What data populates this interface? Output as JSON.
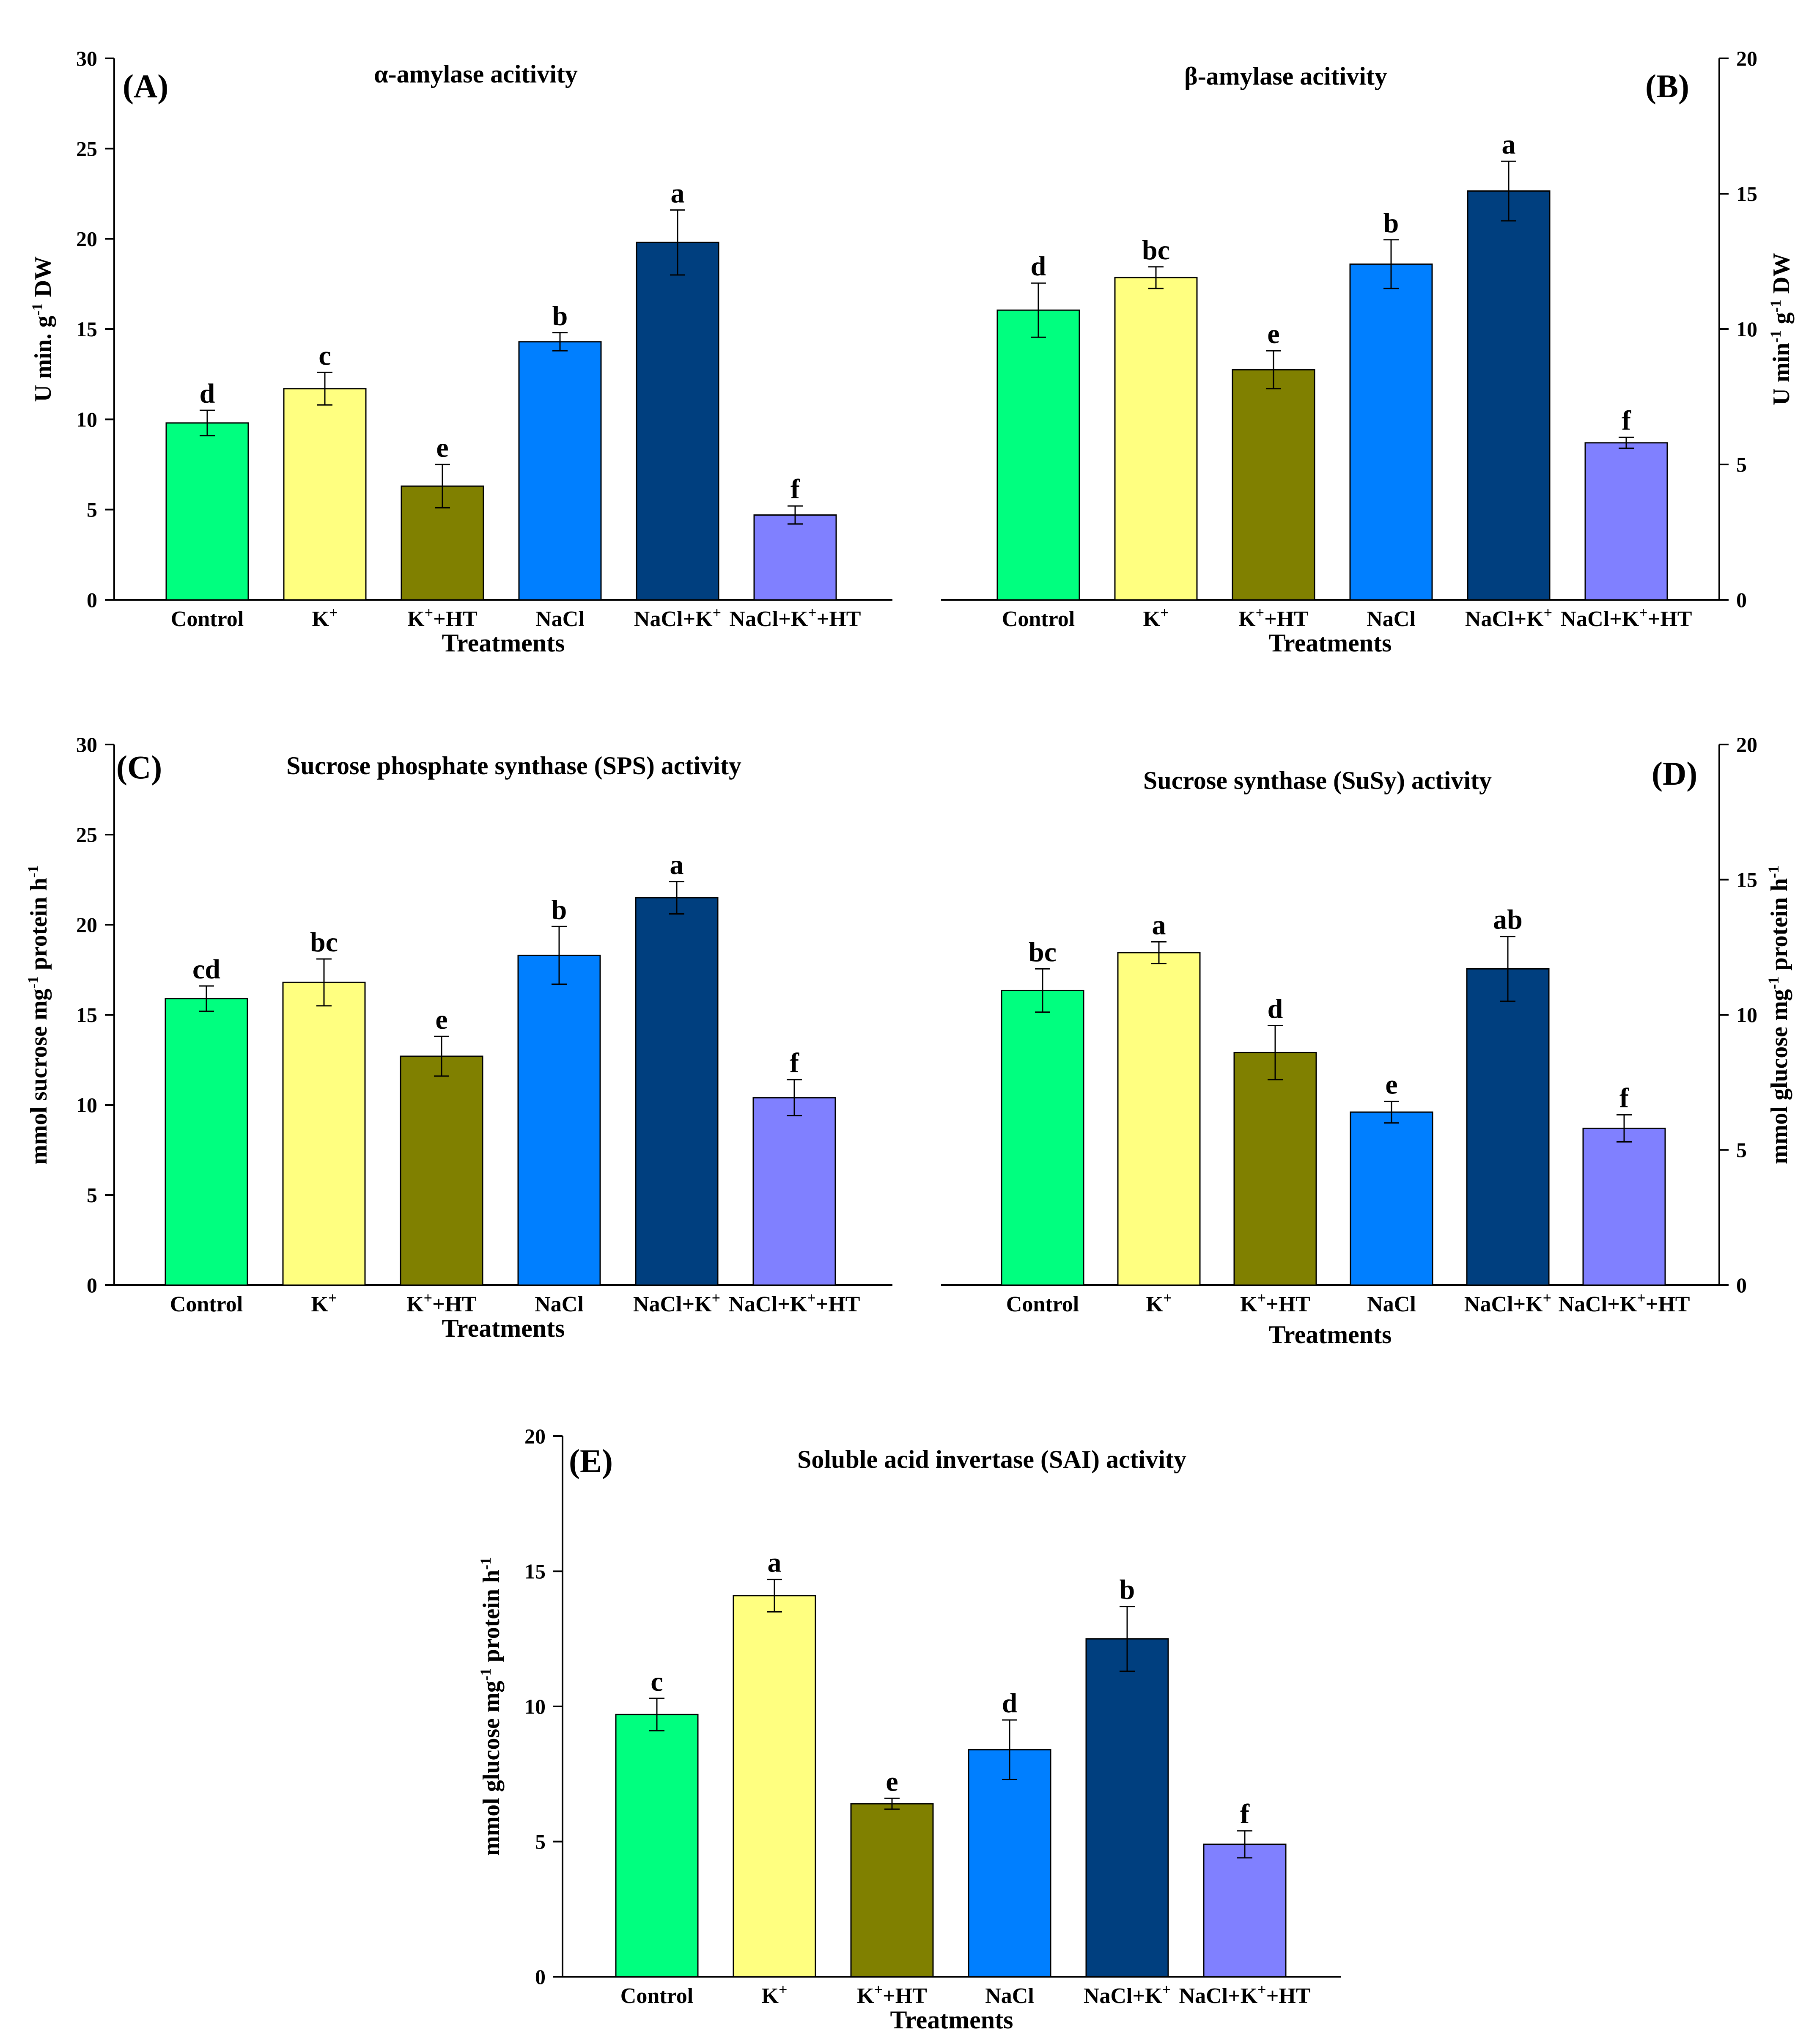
{
  "colors": [
    "#00FF7F",
    "#FFFF80",
    "#808000",
    "#007FFF",
    "#003F7F",
    "#8080FF"
  ],
  "chart_data": [
    {
      "id": "A",
      "type": "bar",
      "panel_label": "(A)",
      "title": "α-amylase acitivity",
      "categories": [
        {
          "base": "Control",
          "sup": "",
          "tail": ""
        },
        {
          "base": "K",
          "sup": "+",
          "tail": ""
        },
        {
          "base": "K",
          "sup": "+",
          "tail": "+HT"
        },
        {
          "base": "NaCl",
          "sup": "",
          "tail": ""
        },
        {
          "base": "NaCl+K",
          "sup": "+",
          "tail": ""
        },
        {
          "base": "NaCl+K",
          "sup": "+",
          "tail": "+HT"
        }
      ],
      "values": [
        9.8,
        11.7,
        6.3,
        14.3,
        19.8,
        4.7
      ],
      "errors": [
        0.7,
        0.9,
        1.2,
        0.5,
        1.8,
        0.5
      ],
      "letters": [
        "d",
        "c",
        "e",
        "b",
        "a",
        "f"
      ],
      "xlabel": "Treatments",
      "ylabel": {
        "pre": "U min. g",
        "sup": "-1",
        "post": " DW"
      },
      "ylim": [
        0,
        30
      ],
      "yticks": [
        0,
        5,
        10,
        15,
        20,
        25,
        30
      ],
      "axis_side": "left"
    },
    {
      "id": "B",
      "type": "bar",
      "panel_label": "(B)",
      "title": "β-amylase acitivity",
      "categories": [
        {
          "base": "Control",
          "sup": "",
          "tail": ""
        },
        {
          "base": "K",
          "sup": "+",
          "tail": ""
        },
        {
          "base": "K",
          "sup": "+",
          "tail": "+HT"
        },
        {
          "base": "NaCl",
          "sup": "",
          "tail": ""
        },
        {
          "base": "NaCl+K",
          "sup": "+",
          "tail": ""
        },
        {
          "base": "NaCl+K",
          "sup": "+",
          "tail": "+HT"
        }
      ],
      "values": [
        10.7,
        11.9,
        8.5,
        12.4,
        15.1,
        5.8
      ],
      "errors": [
        1.0,
        0.4,
        0.7,
        0.9,
        1.1,
        0.2
      ],
      "letters": [
        "d",
        "bc",
        "e",
        "b",
        "a",
        "f"
      ],
      "xlabel": "Treatments",
      "ylabel": {
        "pre": "U min",
        "sup": "-1",
        "mid": " g",
        "sup2": "-1",
        "post": " DW"
      },
      "ylim": [
        0,
        20
      ],
      "yticks": [
        0,
        5,
        10,
        15,
        20
      ],
      "axis_side": "right"
    },
    {
      "id": "C",
      "type": "bar",
      "panel_label": "(C)",
      "title": "Sucrose phosphate synthase (SPS) activity",
      "categories": [
        {
          "base": "Control",
          "sup": "",
          "tail": ""
        },
        {
          "base": "K",
          "sup": "+",
          "tail": ""
        },
        {
          "base": "K",
          "sup": "+",
          "tail": "+HT"
        },
        {
          "base": "NaCl",
          "sup": "",
          "tail": ""
        },
        {
          "base": "NaCl+K",
          "sup": "+",
          "tail": ""
        },
        {
          "base": "NaCl+K",
          "sup": "+",
          "tail": "+HT"
        }
      ],
      "values": [
        15.9,
        16.8,
        12.7,
        18.3,
        21.5,
        10.4
      ],
      "errors": [
        0.7,
        1.3,
        1.1,
        1.6,
        0.9,
        1.0
      ],
      "letters": [
        "cd",
        "bc",
        "e",
        "b",
        "a",
        "f"
      ],
      "xlabel": "Treatments",
      "ylabel": {
        "pre": "mmol sucrose mg",
        "sup": "-1",
        "post": " protein h",
        "sup2": "-1"
      },
      "ylim": [
        0,
        30
      ],
      "yticks": [
        0,
        5,
        10,
        15,
        20,
        25,
        30
      ],
      "axis_side": "left"
    },
    {
      "id": "D",
      "type": "bar",
      "panel_label": "(D)",
      "title": "Sucrose synthase (SuSy) activity",
      "categories": [
        {
          "base": "Control",
          "sup": "",
          "tail": ""
        },
        {
          "base": "K",
          "sup": "+",
          "tail": ""
        },
        {
          "base": "K",
          "sup": "+",
          "tail": "+HT"
        },
        {
          "base": "NaCl",
          "sup": "",
          "tail": ""
        },
        {
          "base": "NaCl+K",
          "sup": "+",
          "tail": ""
        },
        {
          "base": "NaCl+K",
          "sup": "+",
          "tail": "+HT"
        }
      ],
      "values": [
        10.9,
        12.3,
        8.6,
        6.4,
        11.7,
        5.8
      ],
      "errors": [
        0.8,
        0.4,
        1.0,
        0.4,
        1.2,
        0.5
      ],
      "letters": [
        "bc",
        "a",
        "d",
        "e",
        "ab",
        "f"
      ],
      "xlabel": "Treatments",
      "ylabel": {
        "pre": "mmol glucose mg",
        "sup": "-1",
        "post": " protein h",
        "sup2": "-1"
      },
      "ylim": [
        0,
        20
      ],
      "yticks": [
        0,
        5,
        10,
        15,
        20
      ],
      "axis_side": "right"
    },
    {
      "id": "E",
      "type": "bar",
      "panel_label": "(E)",
      "title": "Soluble acid invertase (SAI) activity",
      "categories": [
        {
          "base": "Control",
          "sup": "",
          "tail": ""
        },
        {
          "base": "K",
          "sup": "+",
          "tail": ""
        },
        {
          "base": "K",
          "sup": "+",
          "tail": "+HT"
        },
        {
          "base": "NaCl",
          "sup": "",
          "tail": ""
        },
        {
          "base": "NaCl+K",
          "sup": "+",
          "tail": ""
        },
        {
          "base": "NaCl+K",
          "sup": "+",
          "tail": "+HT"
        }
      ],
      "values": [
        9.7,
        14.1,
        6.4,
        8.4,
        12.5,
        4.9
      ],
      "errors": [
        0.6,
        0.6,
        0.2,
        1.1,
        1.2,
        0.5
      ],
      "letters": [
        "c",
        "a",
        "e",
        "d",
        "b",
        "f"
      ],
      "xlabel": "Treatments",
      "ylabel": {
        "pre": "mmol glucose mg",
        "sup": "-1",
        "post": " protein h",
        "sup2": "-1"
      },
      "ylim": [
        0,
        20
      ],
      "yticks": [
        0,
        5,
        10,
        15,
        20
      ],
      "axis_side": "left"
    }
  ]
}
